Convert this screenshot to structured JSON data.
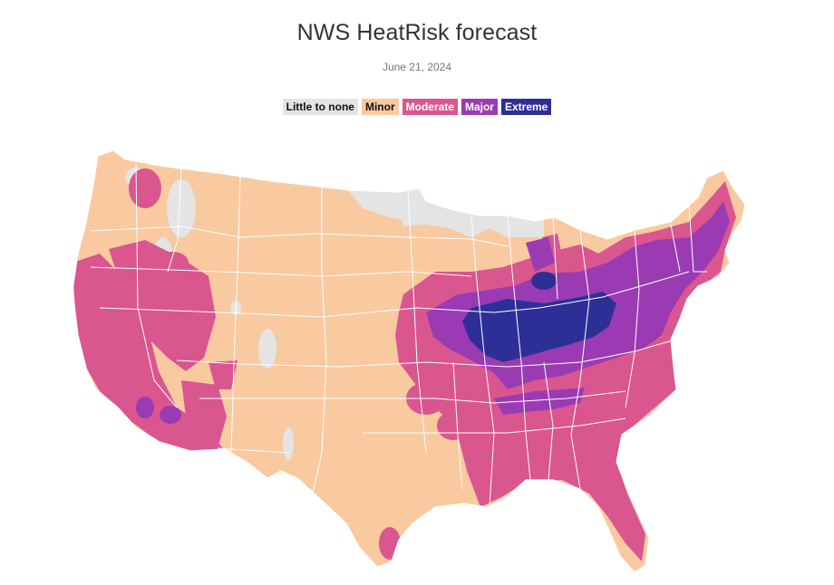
{
  "header": {
    "title": "NWS HeatRisk forecast",
    "date": "June 21, 2024"
  },
  "legend": [
    {
      "label": "Little to none",
      "color": "#e4e4e4",
      "text_color": "#111111"
    },
    {
      "label": "Minor",
      "color": "#f9c9a0",
      "text_color": "#111111"
    },
    {
      "label": "Moderate",
      "color": "#d9568f",
      "text_color": "#ffffff"
    },
    {
      "label": "Major",
      "color": "#9b3bb3",
      "text_color": "#ffffff"
    },
    {
      "label": "Extreme",
      "color": "#2e2f96",
      "text_color": "#ffffff"
    }
  ],
  "map": {
    "region": "contiguous-united-states",
    "border_color": "#ffffff"
  }
}
